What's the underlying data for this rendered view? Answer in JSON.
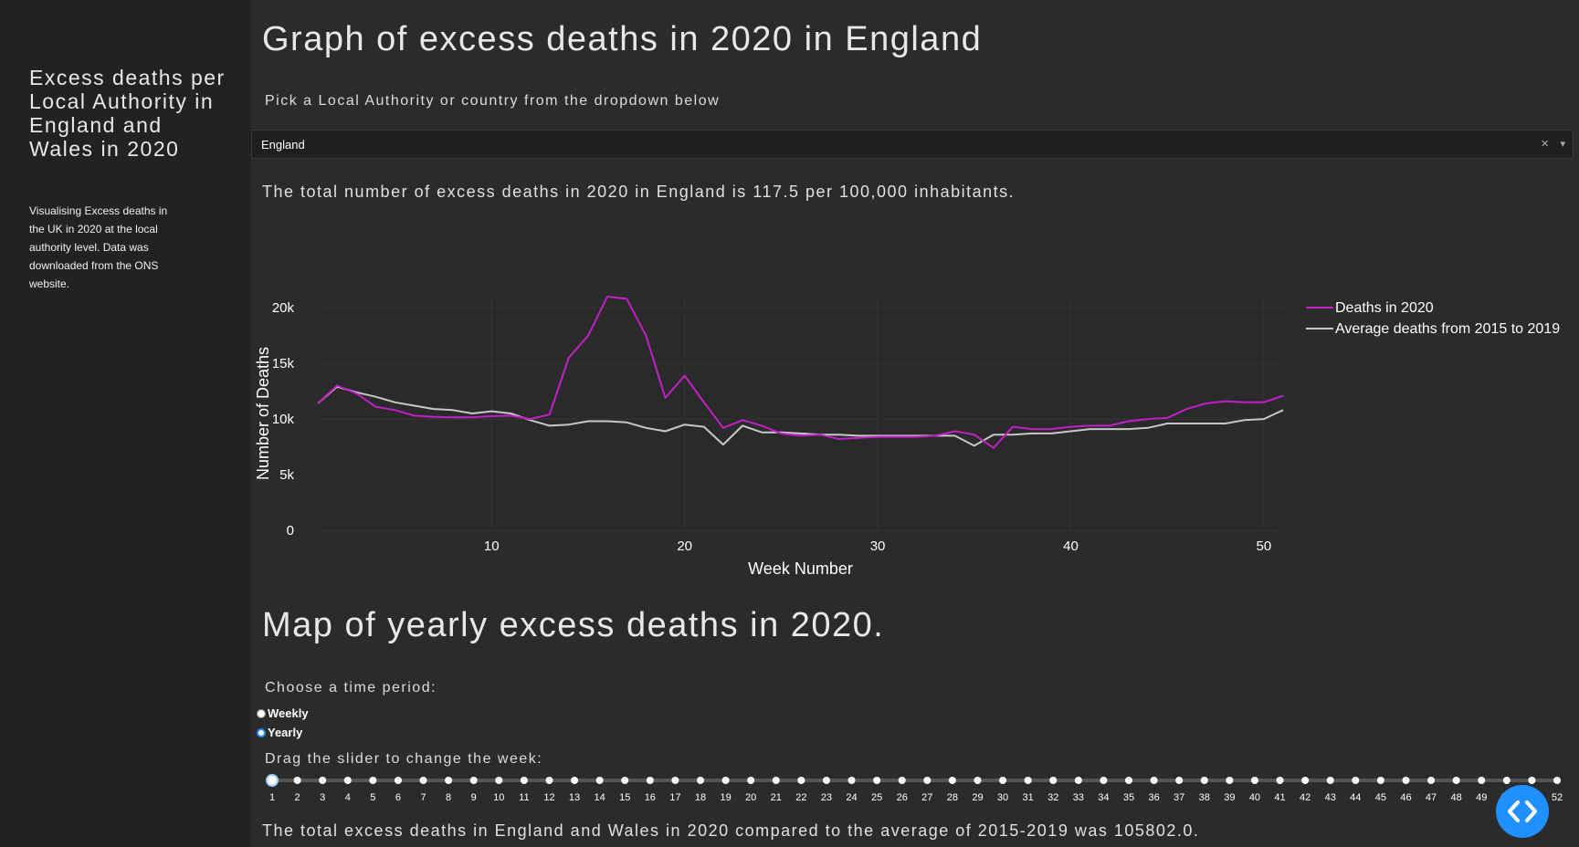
{
  "sidebar": {
    "title": "Excess deaths per Local Authority in England and Wales in 2020",
    "description": "Visualising Excess deaths in the UK in 2020 at the local authority level. Data was downloaded from the ONS website."
  },
  "main": {
    "graph_title": "Graph of excess deaths in 2020 in England",
    "dropdown_prompt": "Pick a Local Authority or country from the dropdown below",
    "dropdown_value": "England",
    "clear_glyph": "×",
    "caret_glyph": "▾",
    "total_sentence": "The total number of excess deaths in 2020 in England is 117.5 per 100,000 inhabitants.",
    "map_title": "Map of yearly excess deaths in 2020.",
    "time_period_label": "Choose a time period:",
    "radio_options": [
      {
        "label": "Weekly",
        "selected": false
      },
      {
        "label": "Yearly",
        "selected": true
      }
    ],
    "slider_label": "Drag the slider to change the week:",
    "slider": {
      "min": 1,
      "max": 52,
      "value": 1
    },
    "footer_sentence": "The total excess deaths in England and Wales in 2020 compared to the average of 2015-2019 was 105802.0."
  },
  "colors": {
    "deaths_2020": "#c21fc9",
    "average": "#c8c8c8",
    "accent": "#1e90ff"
  },
  "fab_icon": "code-toggle-icon",
  "chart_data": {
    "type": "line",
    "xlabel": "Week Number",
    "ylabel": "Number of Deaths",
    "xticks": [
      10,
      20,
      30,
      40,
      50
    ],
    "yticks": [
      0,
      5000,
      10000,
      15000,
      20000
    ],
    "ytick_labels": [
      "0",
      "5k",
      "10k",
      "15k",
      "20k"
    ],
    "xlim": [
      1,
      51
    ],
    "ylim": [
      0,
      21000
    ],
    "legend_position": "top-right",
    "x": [
      1,
      2,
      3,
      4,
      5,
      6,
      7,
      8,
      9,
      10,
      11,
      12,
      13,
      14,
      15,
      16,
      17,
      18,
      19,
      20,
      21,
      22,
      23,
      24,
      25,
      26,
      27,
      28,
      29,
      30,
      31,
      32,
      33,
      34,
      35,
      36,
      37,
      38,
      39,
      40,
      41,
      42,
      43,
      44,
      45,
      46,
      47,
      48,
      49,
      50,
      51
    ],
    "series": [
      {
        "name": "Deaths in 2020",
        "values": [
          11400,
          13000,
          12300,
          11100,
          10800,
          10300,
          10200,
          10150,
          10150,
          10250,
          10300,
          10000,
          10400,
          15500,
          17500,
          21000,
          20800,
          17500,
          11900,
          13900,
          11500,
          9200,
          9900,
          9400,
          8700,
          8500,
          8600,
          8200,
          8300,
          8400,
          8400,
          8400,
          8500,
          8900,
          8600,
          7400,
          9300,
          9100,
          9100,
          9300,
          9400,
          9400,
          9800,
          10000,
          10100,
          10900,
          11400,
          11600,
          11500,
          11500,
          12100
        ],
        "values_note": ""
      },
      {
        "name": "Average deaths from 2015 to 2019",
        "values": [
          11400,
          12900,
          12400,
          12000,
          11500,
          11200,
          10900,
          10800,
          10500,
          10700,
          10500,
          9900,
          9400,
          9500,
          9800,
          9800,
          9700,
          9200,
          8900,
          9500,
          9300,
          7700,
          9400,
          8800,
          8800,
          8700,
          8600,
          8600,
          8500,
          8500,
          8500,
          8500,
          8500,
          8500,
          7600,
          8600,
          8600,
          8700,
          8700,
          8900,
          9100,
          9100,
          9100,
          9200,
          9600,
          9600,
          9600,
          9600,
          9900,
          10000,
          10800
        ],
        "values_note": ""
      }
    ]
  }
}
